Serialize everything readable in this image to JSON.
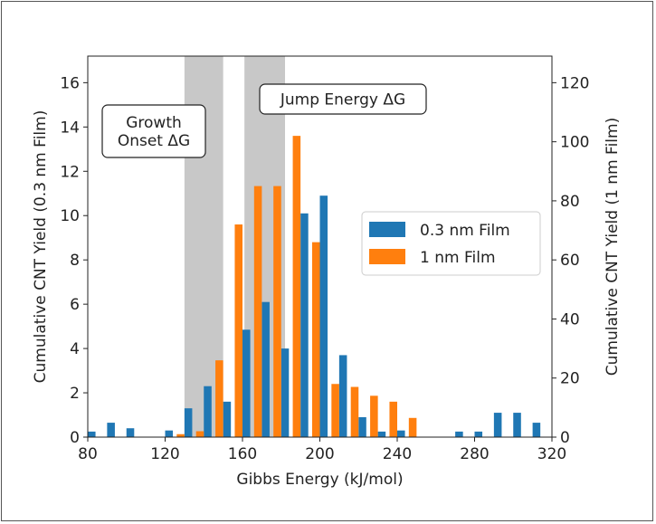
{
  "chart_data": {
    "type": "bar",
    "title": "",
    "xlabel": "Gibbs Energy (kJ/mol)",
    "ylabel_left": "Cumulative CNT Yield (0.3 nm Film)",
    "ylabel_right": "Cumulative CNT Yield (1 nm Film)",
    "xlim": [
      80,
      320
    ],
    "ylim_left": [
      0,
      17.2
    ],
    "ylim_right": [
      0,
      129
    ],
    "x_ticks": [
      80,
      120,
      160,
      200,
      240,
      280,
      320
    ],
    "y_ticks_left": [
      0,
      2,
      4,
      6,
      8,
      10,
      12,
      14,
      16
    ],
    "y_ticks_right": [
      0,
      20,
      40,
      60,
      80,
      100,
      120
    ],
    "legend_position": "center-right",
    "shaded_regions": [
      {
        "x_start": 130,
        "x_end": 150
      },
      {
        "x_start": 161,
        "x_end": 182
      }
    ],
    "annotations": [
      {
        "text": "Growth\nOnset ΔG",
        "x": 113,
        "y": 13.9
      },
      {
        "text": "Jump Energy ΔG",
        "x": 182,
        "y": 15.5
      }
    ],
    "series": [
      {
        "name": "0.3 nm Film",
        "color": "#1f77b4",
        "axis": "left",
        "x": [
          82,
          92,
          102,
          112,
          122,
          132,
          142,
          152,
          162,
          172,
          182,
          192,
          202,
          212,
          222,
          232,
          242,
          252,
          262,
          272,
          282,
          292,
          302,
          312
        ],
        "values": [
          0.25,
          0.65,
          0.4,
          0.0,
          0.3,
          1.3,
          2.3,
          1.6,
          4.85,
          6.1,
          4.0,
          10.1,
          10.9,
          3.7,
          0.9,
          0.25,
          0.3,
          0.0,
          0.0,
          0.25,
          0.25,
          1.1,
          1.1,
          0.65
        ]
      },
      {
        "name": "1 nm Film",
        "color": "#ff7f0e",
        "axis": "right",
        "x": [
          128,
          138,
          148,
          158,
          168,
          178,
          188,
          198,
          208,
          218,
          228,
          238,
          248
        ],
        "values": [
          1,
          2,
          26,
          72,
          85,
          85,
          102,
          66,
          18,
          17,
          14,
          12,
          6.5
        ]
      }
    ]
  }
}
